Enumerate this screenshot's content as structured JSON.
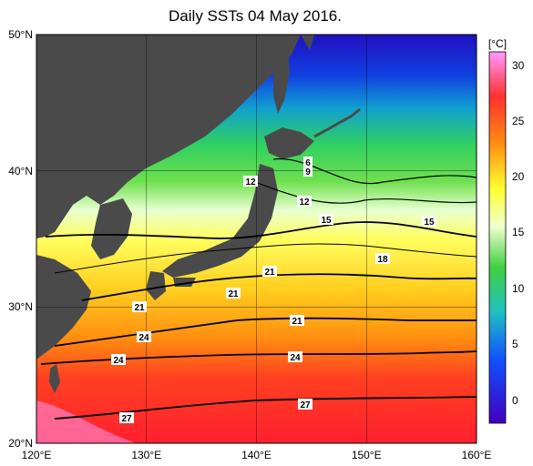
{
  "title": "Daily SSTs 04 May 2016.",
  "map": {
    "lon_ticks": [
      "120°E",
      "130°E",
      "140°E",
      "150°E",
      "160°E"
    ],
    "lat_ticks": [
      "50°N",
      "40°N",
      "30°N",
      "20°N"
    ]
  },
  "colorbar": {
    "unit": "[°C]",
    "ticks": [
      "30",
      "25",
      "20",
      "15",
      "10",
      "5",
      "0"
    ],
    "stops": [
      "#ff99ff",
      "#ff2020",
      "#ffa000",
      "#ffff30",
      "#ffffd0",
      "#60e060",
      "#30d0a0",
      "#1060ff",
      "#4000d0"
    ]
  },
  "contour_labels": [
    "6",
    "9",
    "12",
    "12",
    "15",
    "15",
    "18",
    "21",
    "21",
    "21",
    "21",
    "24",
    "24",
    "24",
    "27",
    "27"
  ]
}
